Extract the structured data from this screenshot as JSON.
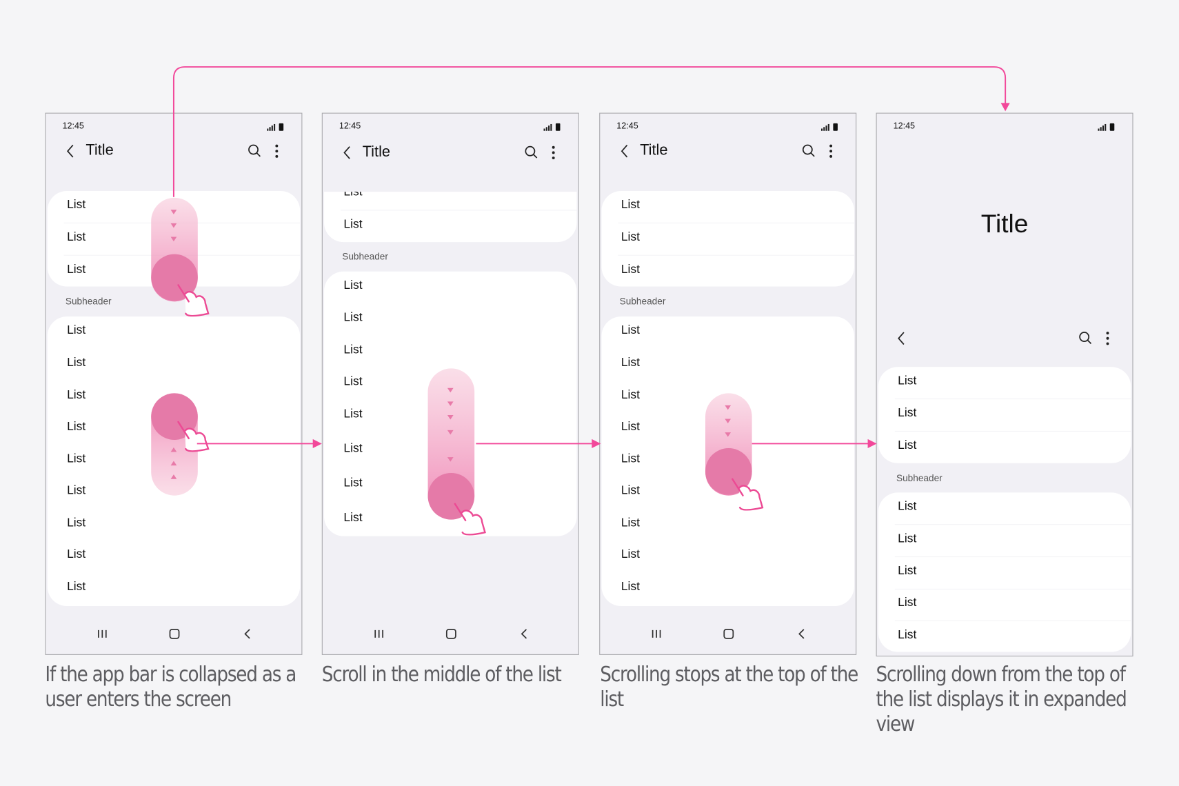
{
  "colors": {
    "accent": "#f2489a",
    "background": "#f5f5f7",
    "screen": "#f1f0f5",
    "card": "#ffffff",
    "gesture_fill": "#ec6ea5"
  },
  "icons": [
    "back-icon",
    "search-icon",
    "more-icon",
    "signal-icon",
    "battery-icon",
    "recent-apps-icon",
    "home-icon",
    "nav-back-icon",
    "swipe-hand-icon",
    "arrow-icon"
  ],
  "panel1": {
    "time": "12:45",
    "title": "Title",
    "list_a": [
      "List",
      "List",
      "List"
    ],
    "subheader": "Subheader",
    "list_b": [
      "List",
      "List",
      "List",
      "List",
      "List",
      "List",
      "List",
      "List",
      "List"
    ],
    "caption": "If the app bar is collapsed as a user enters the screen"
  },
  "panel2": {
    "time": "12:45",
    "title": "Title",
    "list_a": [
      "List",
      "List"
    ],
    "subheader": "Subheader",
    "list_b": [
      "List",
      "List",
      "List",
      "List",
      "List",
      "List",
      "List",
      "List"
    ],
    "caption": "Scroll in the middle of the list"
  },
  "panel3": {
    "time": "12:45",
    "title": "Title",
    "list_a": [
      "List",
      "List",
      "List"
    ],
    "subheader": "Subheader",
    "list_b": [
      "List",
      "List",
      "List",
      "List",
      "List",
      "List",
      "List",
      "List",
      "List"
    ],
    "caption": "Scrolling stops at the top of the list"
  },
  "panel4": {
    "time": "12:45",
    "title": "Title",
    "list_a": [
      "List",
      "List",
      "List"
    ],
    "subheader": "Subheader",
    "list_b": [
      "List",
      "List",
      "List",
      "List",
      "List"
    ],
    "caption": "Scrolling down from the top of the list displays it in expanded view"
  }
}
